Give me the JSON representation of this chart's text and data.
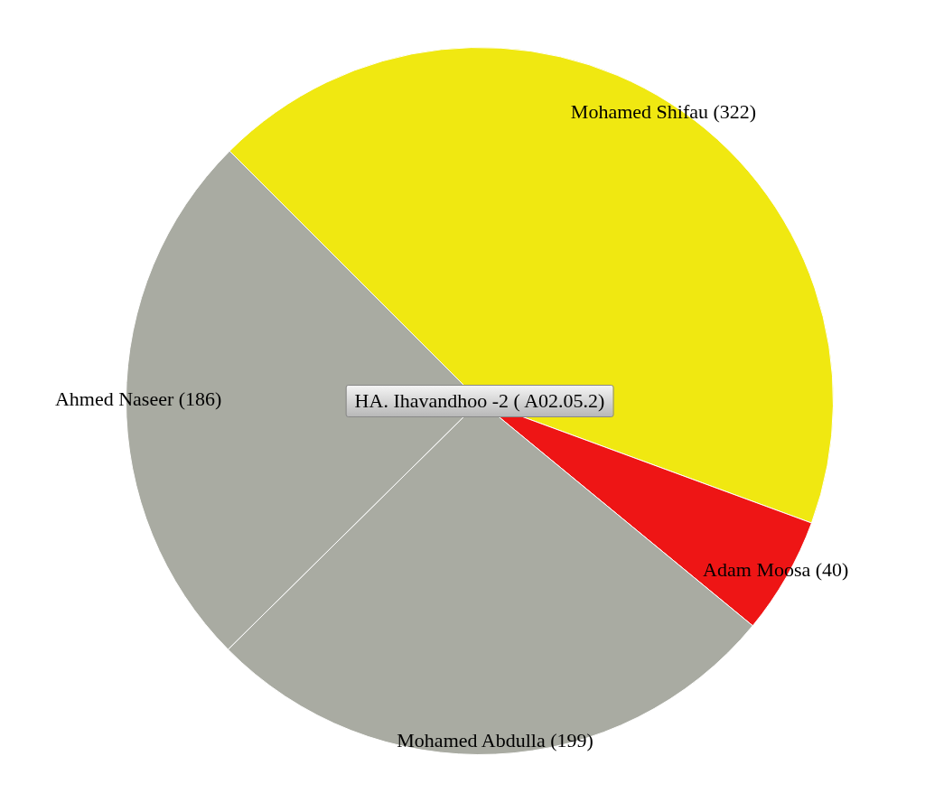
{
  "chart_data": {
    "type": "pie",
    "title": "HA. Ihavandhoo -2 ( A02.05.2)",
    "categories": [
      "Mohamed Shifau",
      "Adam Moosa",
      "Mohamed Abdulla",
      "Ahmed Naseer"
    ],
    "values": [
      322,
      40,
      199,
      186
    ],
    "value_labels": [
      "(322)",
      "(40)",
      "(199)",
      "(186)"
    ],
    "colors": [
      "#f0e811",
      "#ee1515",
      "#a9aba2",
      "#a9aba2"
    ],
    "legend": false
  }
}
